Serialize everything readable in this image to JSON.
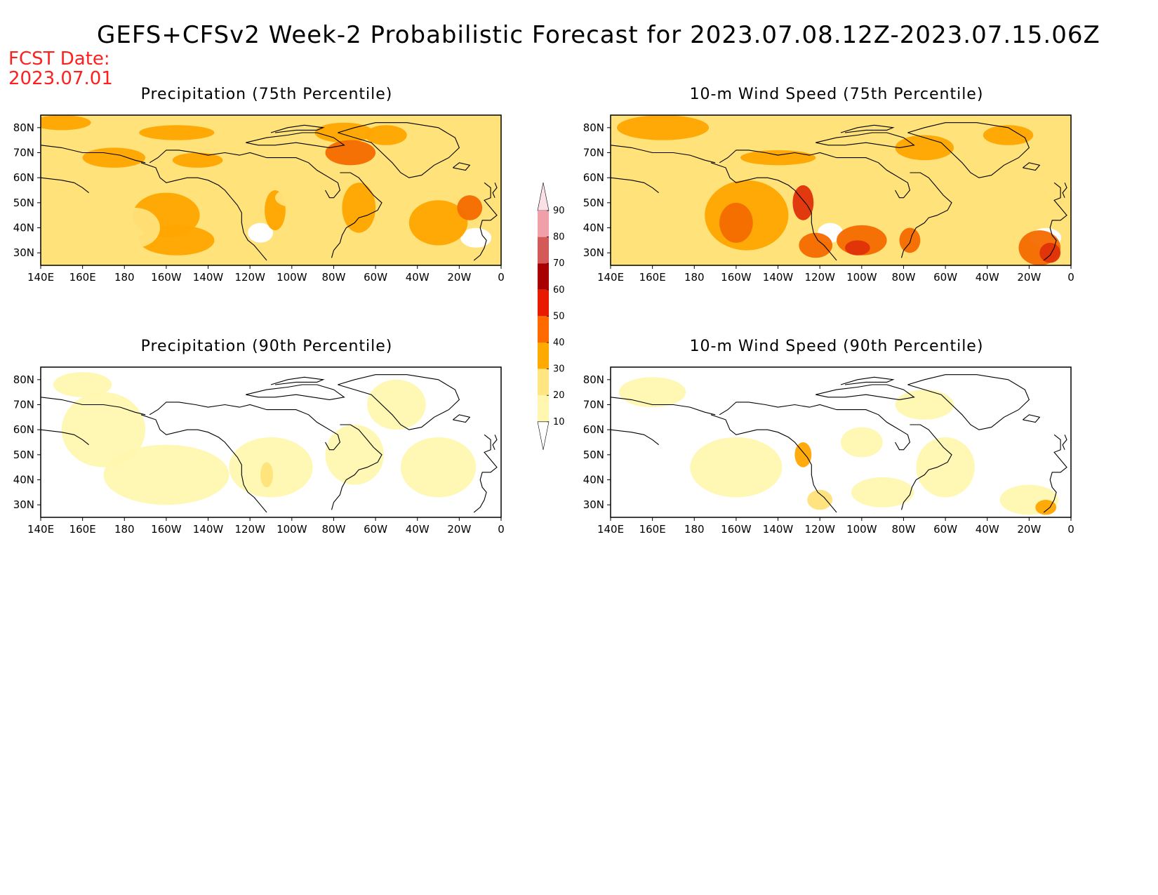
{
  "header": {
    "title": "GEFS+CFSv2 Week-2 Probabilistic Forecast for 2023.07.08.12Z-2023.07.15.06Z",
    "fcst_label": "FCST Date:",
    "fcst_date": "2023.07.01"
  },
  "axes": {
    "lat_labels": [
      "80N",
      "70N",
      "60N",
      "50N",
      "40N",
      "30N"
    ],
    "lat_values": [
      80,
      70,
      60,
      50,
      40,
      30
    ],
    "lon_labels": [
      "140E",
      "160E",
      "180",
      "160W",
      "140W",
      "120W",
      "100W",
      "80W",
      "60W",
      "40W",
      "20W",
      "0"
    ],
    "lat_range": [
      25,
      85
    ],
    "lon_range_deg_east": [
      140,
      360
    ]
  },
  "panels": [
    {
      "title": "Precipitation (75th Percentile)",
      "level": "75"
    },
    {
      "title": "10-m Wind Speed (75th Percentile)",
      "level": "75"
    },
    {
      "title": "Precipitation (90th Percentile)",
      "level": "90"
    },
    {
      "title": "10-m Wind Speed (90th Percentile)",
      "level": "90"
    }
  ],
  "colorbar": {
    "levels": [
      "10",
      "20",
      "30",
      "40",
      "50",
      "60",
      "70",
      "80",
      "90"
    ],
    "colors": [
      "#fff7b0",
      "#ffe680",
      "#ffaa00",
      "#ff6a00",
      "#e81a00",
      "#a80000",
      "#d45a5a",
      "#f0a0a8",
      "#fbe0e6"
    ]
  },
  "colors": {
    "shade_10": "#fff7b0",
    "shade_20": "#ffe27a",
    "shade_30": "#ffa500",
    "shade_40": "#f46a00",
    "shade_50": "#e0300a",
    "fcst_text": "#ff1f1f"
  }
}
